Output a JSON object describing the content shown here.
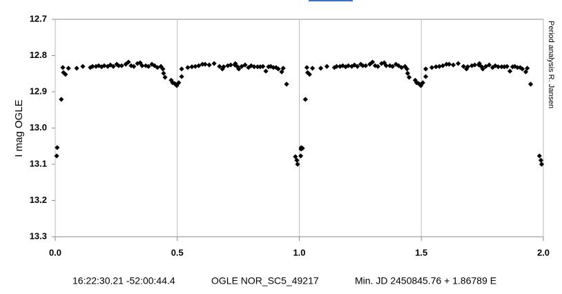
{
  "chart_data": {
    "type": "scatter",
    "y_label": "I mag OGLE",
    "annotation": "Period analysis  R. Jansen",
    "caption": [
      "16:22:30.21 -52:00:44.4",
      "OGLE NOR_SC5_49217",
      "Min. JD 2450845.76 + 1.86789 E"
    ],
    "color": "#000000",
    "grid": "x",
    "xlim": [
      0,
      2
    ],
    "xticks": [
      {
        "value": 0,
        "label": "0.0"
      },
      0.5,
      {
        "value": 1,
        "label": "1.0"
      },
      1.5,
      {
        "value": 2,
        "label": "2.0"
      }
    ],
    "ylim": [
      13.3,
      12.7
    ],
    "yticks": [
      12.7,
      12.8,
      12.9,
      {
        "value": 13,
        "label": "13.0"
      },
      13.1,
      13.2,
      13.3
    ],
    "x": [
      0.006,
      0.008,
      0.025,
      0.031,
      0.034,
      0.042,
      0.054,
      0.088,
      0.113,
      0.144,
      0.153,
      0.167,
      0.178,
      0.19,
      0.201,
      0.215,
      0.226,
      0.238,
      0.252,
      0.26,
      0.272,
      0.289,
      0.3,
      0.311,
      0.322,
      0.337,
      0.348,
      0.356,
      0.371,
      0.382,
      0.396,
      0.407,
      0.419,
      0.433,
      0.441,
      0.444,
      0.45,
      0.475,
      0.481,
      0.489,
      0.498,
      0.506,
      0.518,
      0.518,
      0.543,
      0.56,
      0.574,
      0.588,
      0.603,
      0.614,
      0.631,
      0.651,
      0.673,
      0.685,
      0.69,
      0.707,
      0.719,
      0.736,
      0.738,
      0.747,
      0.752,
      0.764,
      0.778,
      0.792,
      0.803,
      0.815,
      0.829,
      0.84,
      0.851,
      0.863,
      0.874,
      0.883,
      0.894,
      0.905,
      0.914,
      0.928,
      0.934,
      0.948,
      0.984,
      0.99,
      0.993,
      1.007,
      1.013,
      1.006,
      1.008,
      1.025,
      1.031,
      1.034,
      1.042,
      1.054,
      1.088,
      1.113,
      1.144,
      1.153,
      1.167,
      1.178,
      1.19,
      1.201,
      1.215,
      1.226,
      1.238,
      1.252,
      1.26,
      1.272,
      1.289,
      1.3,
      1.311,
      1.322,
      1.337,
      1.348,
      1.356,
      1.371,
      1.382,
      1.396,
      1.407,
      1.419,
      1.433,
      1.441,
      1.444,
      1.45,
      1.475,
      1.481,
      1.489,
      1.498,
      1.506,
      1.518,
      1.518,
      1.543,
      1.56,
      1.574,
      1.588,
      1.603,
      1.614,
      1.631,
      1.651,
      1.673,
      1.685,
      1.69,
      1.707,
      1.719,
      1.736,
      1.738,
      1.747,
      1.752,
      1.764,
      1.778,
      1.792,
      1.803,
      1.815,
      1.829,
      1.84,
      1.851,
      1.863,
      1.874,
      1.883,
      1.894,
      1.905,
      1.914,
      1.928,
      1.934,
      1.948,
      1.984,
      1.99,
      1.993
    ],
    "y": [
      13.077,
      13.054,
      12.921,
      12.833,
      12.847,
      12.852,
      12.835,
      12.835,
      12.83,
      12.833,
      12.83,
      12.83,
      12.828,
      12.831,
      12.828,
      12.83,
      12.826,
      12.83,
      12.824,
      12.828,
      12.828,
      12.824,
      12.818,
      12.828,
      12.83,
      12.822,
      12.82,
      12.828,
      12.828,
      12.83,
      12.824,
      12.828,
      12.833,
      12.83,
      12.837,
      12.849,
      12.86,
      12.868,
      12.875,
      12.877,
      12.883,
      12.875,
      12.858,
      12.837,
      12.833,
      12.831,
      12.83,
      12.828,
      12.824,
      12.824,
      12.826,
      12.822,
      12.83,
      12.837,
      12.831,
      12.828,
      12.826,
      12.826,
      12.822,
      12.831,
      12.837,
      12.83,
      12.826,
      12.833,
      12.828,
      12.831,
      12.831,
      12.831,
      12.83,
      12.843,
      12.831,
      12.83,
      12.833,
      12.833,
      12.837,
      12.845,
      12.835,
      12.879,
      13.079,
      13.089,
      13.1,
      13.058,
      13.056,
      13.077,
      13.054,
      12.921,
      12.833,
      12.847,
      12.852,
      12.835,
      12.835,
      12.83,
      12.833,
      12.83,
      12.83,
      12.828,
      12.831,
      12.828,
      12.83,
      12.826,
      12.83,
      12.824,
      12.828,
      12.828,
      12.824,
      12.818,
      12.828,
      12.83,
      12.822,
      12.82,
      12.828,
      12.828,
      12.83,
      12.824,
      12.828,
      12.833,
      12.83,
      12.837,
      12.849,
      12.86,
      12.868,
      12.875,
      12.877,
      12.883,
      12.875,
      12.858,
      12.837,
      12.833,
      12.831,
      12.83,
      12.828,
      12.824,
      12.824,
      12.826,
      12.822,
      12.83,
      12.837,
      12.831,
      12.828,
      12.826,
      12.826,
      12.822,
      12.831,
      12.837,
      12.83,
      12.826,
      12.833,
      12.828,
      12.831,
      12.831,
      12.831,
      12.83,
      12.843,
      12.831,
      12.83,
      12.833,
      12.833,
      12.837,
      12.845,
      12.835,
      12.879,
      13.077,
      13.089,
      13.1
    ]
  }
}
